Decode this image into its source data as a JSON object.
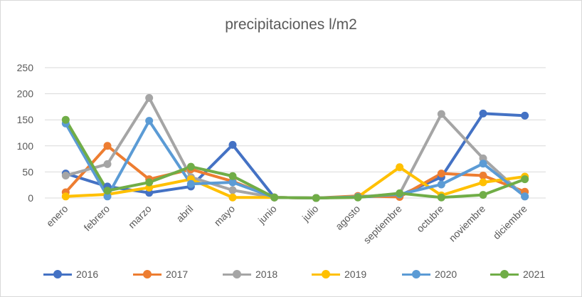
{
  "chart_data": {
    "type": "line",
    "title": "precipitaciones l/m2",
    "xlabel": "",
    "ylabel": "",
    "ylim": [
      0,
      250
    ],
    "yticks": [
      0,
      50,
      100,
      150,
      200,
      250
    ],
    "grid": true,
    "legend_position": "bottom",
    "categories": [
      "enero",
      "febrero",
      "marzo",
      "abril",
      "mayo",
      "junio",
      "julio",
      "agosto",
      "septiembre",
      "octubre",
      "noviembre",
      "diciembre"
    ],
    "series": [
      {
        "name": "2016",
        "color": "#4472C4",
        "values": [
          47,
          22,
          10,
          22,
          102,
          1,
          0,
          2,
          5,
          40,
          162,
          158
        ]
      },
      {
        "name": "2017",
        "color": "#ED7D31",
        "values": [
          11,
          100,
          36,
          55,
          32,
          1,
          0,
          4,
          2,
          47,
          43,
          12
        ]
      },
      {
        "name": "2018",
        "color": "#A5A5A5",
        "values": [
          43,
          65,
          192,
          40,
          15,
          1,
          0,
          2,
          8,
          161,
          76,
          3
        ]
      },
      {
        "name": "2019",
        "color": "#FFC000",
        "values": [
          3,
          7,
          20,
          36,
          1,
          1,
          0,
          2,
          59,
          5,
          30,
          41
        ]
      },
      {
        "name": "2020",
        "color": "#5B9BD5",
        "values": [
          143,
          3,
          148,
          27,
          30,
          1,
          0,
          2,
          7,
          26,
          66,
          3
        ]
      },
      {
        "name": "2021",
        "color": "#70AD47",
        "values": [
          150,
          14,
          30,
          60,
          42,
          1,
          0,
          1,
          9,
          1,
          6,
          36
        ]
      }
    ]
  }
}
